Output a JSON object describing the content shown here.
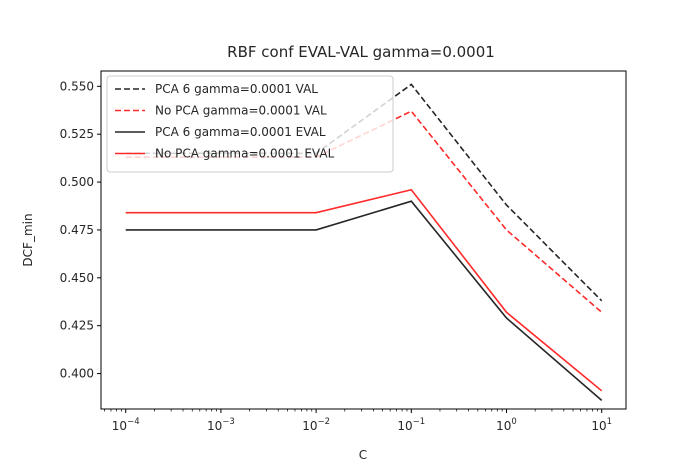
{
  "chart_data": {
    "type": "line",
    "title": "RBF conf EVAL-VAL gamma=0.0001",
    "xlabel": "C",
    "ylabel": "DCF_min",
    "xscale": "log",
    "x": [
      0.0001,
      0.01,
      0.1,
      1,
      10
    ],
    "xlim": [
      5.5e-05,
      18
    ],
    "ylim": [
      0.3815,
      0.558
    ],
    "xticks": [
      {
        "value": 0.0001,
        "base": "10",
        "exp": "−4"
      },
      {
        "value": 0.001,
        "base": "10",
        "exp": "−3"
      },
      {
        "value": 0.01,
        "base": "10",
        "exp": "−2"
      },
      {
        "value": 0.1,
        "base": "10",
        "exp": "−1"
      },
      {
        "value": 1,
        "base": "10",
        "exp": "0"
      },
      {
        "value": 10,
        "base": "10",
        "exp": "1"
      }
    ],
    "yticks": [
      {
        "value": 0.4,
        "label": "0.400"
      },
      {
        "value": 0.425,
        "label": "0.425"
      },
      {
        "value": 0.45,
        "label": "0.450"
      },
      {
        "value": 0.475,
        "label": "0.475"
      },
      {
        "value": 0.5,
        "label": "0.500"
      },
      {
        "value": 0.525,
        "label": "0.525"
      },
      {
        "value": 0.55,
        "label": "0.550"
      }
    ],
    "grid": false,
    "legend_position": "top-left",
    "series": [
      {
        "name": "PCA 6 gamma=0.0001 VAL",
        "color": "#262626",
        "dash": "dashed",
        "values": [
          0.515,
          0.515,
          0.551,
          0.488,
          0.438
        ]
      },
      {
        "name": "No PCA gamma=0.0001 VAL",
        "color": "#ff2a2a",
        "dash": "dashed",
        "values": [
          0.513,
          0.513,
          0.537,
          0.475,
          0.432
        ]
      },
      {
        "name": "PCA 6 gamma=0.0001 EVAL",
        "color": "#262626",
        "dash": "solid",
        "values": [
          0.475,
          0.475,
          0.49,
          0.429,
          0.386
        ]
      },
      {
        "name": "No PCA gamma=0.0001 EVAL",
        "color": "#ff2a2a",
        "dash": "solid",
        "values": [
          0.484,
          0.484,
          0.496,
          0.432,
          0.391
        ]
      }
    ]
  }
}
